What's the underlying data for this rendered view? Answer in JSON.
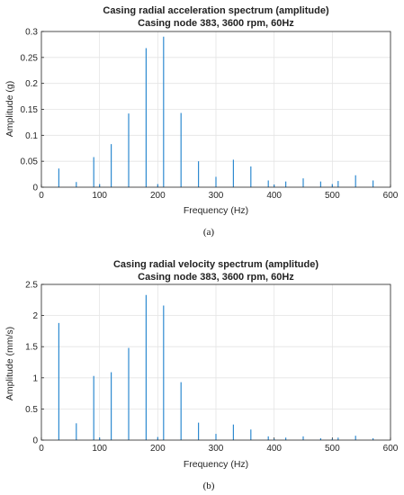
{
  "chart_data": [
    {
      "type": "bar",
      "title": "Casing radial acceleration spectrum (amplitude)",
      "subtitle": "Casing node 383, 3600 rpm, 60Hz",
      "xlabel": "Frequency (Hz)",
      "ylabel": "Amplitude (g)",
      "xlim": [
        0,
        600
      ],
      "ylim": [
        0,
        0.3
      ],
      "xticks": [
        "0",
        "100",
        "200",
        "300",
        "400",
        "500",
        "600"
      ],
      "yticks": [
        "0",
        "0.05",
        "0.1",
        "0.15",
        "0.2",
        "0.25",
        "0.3"
      ],
      "grid": true,
      "caption": "(a)",
      "x": [
        30,
        60,
        90,
        100,
        120,
        150,
        180,
        200,
        210,
        240,
        270,
        300,
        330,
        360,
        390,
        400,
        420,
        450,
        480,
        500,
        510,
        540,
        570
      ],
      "values": [
        0.036,
        0.01,
        0.058,
        0.006,
        0.083,
        0.142,
        0.268,
        0.006,
        0.29,
        0.143,
        0.05,
        0.02,
        0.053,
        0.04,
        0.013,
        0.005,
        0.011,
        0.017,
        0.011,
        0.006,
        0.012,
        0.023,
        0.013
      ],
      "color": "#2e8ad0"
    },
    {
      "type": "bar",
      "title": "Casing radial velocity spectrum (amplitude)",
      "subtitle": "Casing node 383, 3600 rpm, 60Hz",
      "xlabel": "Frequency (Hz)",
      "ylabel": "Amplitude (mm/s)",
      "xlim": [
        0,
        600
      ],
      "ylim": [
        0,
        2.5
      ],
      "xticks": [
        "0",
        "100",
        "200",
        "300",
        "400",
        "500",
        "600"
      ],
      "yticks": [
        "0",
        "0.5",
        "1",
        "1.5",
        "2",
        "2.5"
      ],
      "grid": true,
      "caption": "(b)",
      "x": [
        30,
        60,
        90,
        100,
        120,
        150,
        180,
        200,
        210,
        240,
        270,
        300,
        330,
        360,
        390,
        400,
        420,
        450,
        480,
        500,
        510,
        540,
        570
      ],
      "values": [
        1.88,
        0.27,
        1.03,
        0.04,
        1.09,
        1.48,
        2.33,
        0.05,
        2.16,
        0.93,
        0.28,
        0.1,
        0.25,
        0.17,
        0.06,
        0.02,
        0.04,
        0.06,
        0.03,
        0.02,
        0.04,
        0.07,
        0.03
      ],
      "color": "#2e8ad0"
    }
  ]
}
